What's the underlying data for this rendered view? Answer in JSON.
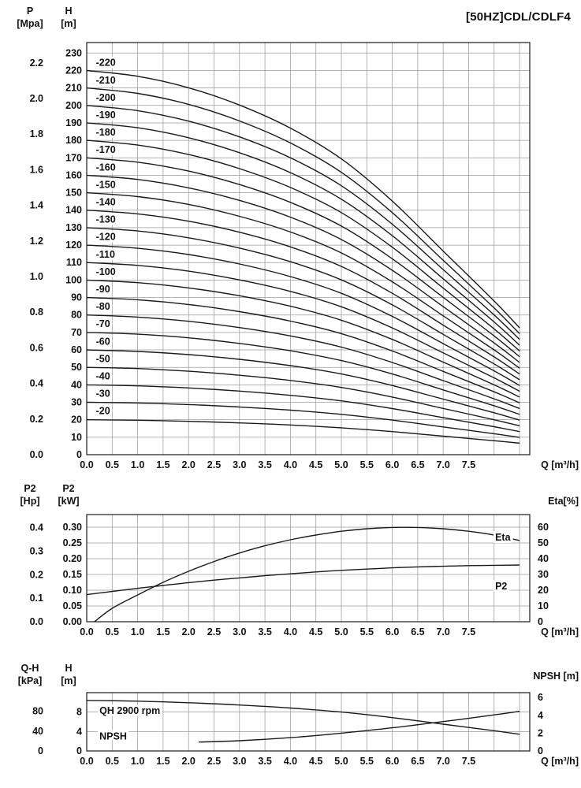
{
  "style": {
    "background": "#ffffff",
    "grid_color": "#9b9b9b",
    "line_color": "#1a1a1a",
    "text_color": "#111111"
  },
  "x_axis": {
    "label": "Q [m³/h]",
    "min": 0,
    "max": 8.7,
    "grid_step": 0.5,
    "tick_labels": [
      "0.0",
      "0.5",
      "1.0",
      "1.5",
      "2.0",
      "2.5",
      "3.0",
      "3.5",
      "4.0",
      "4.5",
      "5.0",
      "5.5",
      "6.0",
      "6.5",
      "7.0",
      "7.5"
    ]
  },
  "chart_data": [
    {
      "id": "qh",
      "type": "line",
      "title": "[50HZ]CDL/CDLF4",
      "xlabel": "Q [m³/h]",
      "ylim": [
        0,
        236
      ],
      "grid_y_step": 10,
      "y_axes": [
        {
          "name": "P",
          "title_lines": [
            "P",
            "[Mpa]"
          ],
          "to_primary": 101.9716,
          "ticks": [
            "0.0",
            "0.2",
            "0.4",
            "0.6",
            "0.8",
            "1.0",
            "1.2",
            "1.4",
            "1.6",
            "1.8",
            "2.0",
            "2.2"
          ]
        },
        {
          "name": "H",
          "title_lines": [
            "H",
            "[m]"
          ],
          "to_primary": 1,
          "ticks": [
            "0",
            "10",
            "20",
            "30",
            "40",
            "50",
            "60",
            "70",
            "80",
            "90",
            "100",
            "110",
            "120",
            "130",
            "140",
            "150",
            "160",
            "170",
            "180",
            "190",
            "200",
            "210",
            "220",
            "230"
          ]
        }
      ],
      "curve_labels": {
        "x": 0.18,
        "dy": 5
      },
      "x": [
        0,
        1,
        2,
        3,
        4,
        5,
        6,
        7,
        8,
        8.5
      ],
      "series": [
        {
          "name": "-220",
          "values": [
            220,
            216.7,
            210.1,
            200.2,
            187.0,
            169.4,
            145.2,
            116.6,
            88.0,
            72.6
          ]
        },
        {
          "name": "-210",
          "values": [
            210,
            206.9,
            200.6,
            191.1,
            178.5,
            161.7,
            138.6,
            111.3,
            84.0,
            69.3
          ]
        },
        {
          "name": "-200",
          "values": [
            200,
            197.0,
            191.0,
            182.0,
            170.0,
            154.0,
            132.0,
            106.0,
            80.0,
            66.0
          ]
        },
        {
          "name": "-190",
          "values": [
            190,
            187.2,
            181.5,
            172.9,
            161.5,
            146.3,
            125.4,
            100.7,
            76.0,
            62.7
          ]
        },
        {
          "name": "-180",
          "values": [
            180,
            177.3,
            171.9,
            163.8,
            153.0,
            138.6,
            118.8,
            95.4,
            72.0,
            59.4
          ]
        },
        {
          "name": "-170",
          "values": [
            170,
            167.5,
            162.4,
            154.7,
            144.5,
            130.9,
            112.2,
            90.1,
            68.0,
            56.1
          ]
        },
        {
          "name": "-160",
          "values": [
            160,
            157.6,
            152.8,
            145.6,
            136.0,
            123.2,
            105.6,
            84.8,
            64.0,
            52.8
          ]
        },
        {
          "name": "-150",
          "values": [
            150,
            147.8,
            143.3,
            136.5,
            127.5,
            115.5,
            99.0,
            79.5,
            60.0,
            49.5
          ]
        },
        {
          "name": "-140",
          "values": [
            140,
            137.9,
            133.7,
            127.4,
            119.0,
            107.8,
            92.4,
            74.2,
            56.0,
            46.2
          ]
        },
        {
          "name": "-130",
          "values": [
            130,
            128.1,
            124.2,
            118.3,
            110.5,
            100.1,
            85.8,
            68.9,
            52.0,
            42.9
          ]
        },
        {
          "name": "-120",
          "values": [
            120,
            118.2,
            114.6,
            109.2,
            102.0,
            92.4,
            79.2,
            63.6,
            48.0,
            39.6
          ]
        },
        {
          "name": "-110",
          "values": [
            110,
            108.4,
            105.1,
            100.1,
            93.5,
            84.7,
            72.6,
            58.3,
            44.0,
            36.3
          ]
        },
        {
          "name": "-100",
          "values": [
            100,
            98.5,
            95.5,
            91.0,
            85.0,
            77.0,
            66.0,
            53.0,
            40.0,
            33.0
          ]
        },
        {
          "name": "-90",
          "values": [
            90,
            88.7,
            86.0,
            81.9,
            76.5,
            69.3,
            59.4,
            47.7,
            36.0,
            29.7
          ]
        },
        {
          "name": "-80",
          "values": [
            80,
            78.8,
            76.4,
            72.8,
            68.0,
            61.6,
            52.8,
            42.4,
            32.0,
            26.4
          ]
        },
        {
          "name": "-70",
          "values": [
            70,
            69.0,
            66.9,
            63.7,
            59.5,
            53.9,
            46.2,
            37.1,
            28.0,
            23.1
          ]
        },
        {
          "name": "-60",
          "values": [
            60,
            59.1,
            57.3,
            54.6,
            51.0,
            46.2,
            39.6,
            31.8,
            24.0,
            19.8
          ]
        },
        {
          "name": "-50",
          "values": [
            50,
            49.3,
            47.8,
            45.5,
            42.5,
            38.5,
            33.0,
            26.5,
            20.0,
            16.5
          ]
        },
        {
          "name": "-40",
          "values": [
            40,
            39.4,
            38.2,
            36.4,
            34.0,
            30.8,
            26.4,
            21.2,
            16.0,
            13.2
          ]
        },
        {
          "name": "-30",
          "values": [
            30,
            29.6,
            28.7,
            27.3,
            25.5,
            23.1,
            19.8,
            15.9,
            12.0,
            9.9
          ]
        },
        {
          "name": "-20",
          "values": [
            20,
            19.7,
            19.1,
            18.2,
            17.0,
            15.4,
            13.2,
            10.6,
            8.0,
            6.6
          ]
        }
      ]
    },
    {
      "id": "power-eta",
      "type": "line",
      "xlabel": "Q [m³/h]",
      "ylim": [
        0,
        0.34
      ],
      "grid_y_step": 0.05,
      "y_axes": [
        {
          "name": "P2_Hp",
          "title_lines": [
            "P2",
            "[Hp]"
          ],
          "to_primary": 0.7457,
          "ticks": [
            "0.0",
            "0.1",
            "0.2",
            "0.3",
            "0.4"
          ]
        },
        {
          "name": "P2_kW",
          "title_lines": [
            "P2",
            "[kW]"
          ],
          "to_primary": 1,
          "ticks": [
            "0.00",
            "0.05",
            "0.10",
            "0.15",
            "0.20",
            "0.25",
            "0.30"
          ]
        }
      ],
      "right_axis": {
        "name": "Eta",
        "title": "Eta[%]",
        "to_primary": 0.005,
        "ticks": [
          "0",
          "10",
          "20",
          "30",
          "40",
          "50",
          "60"
        ]
      },
      "series": [
        {
          "name": "Eta",
          "to_primary": 0.005,
          "x": [
            0.15,
            0.5,
            1,
            1.5,
            2,
            2.5,
            3,
            3.5,
            4,
            4.5,
            5,
            5.5,
            6,
            6.5,
            7,
            7.5,
            8,
            8.5
          ],
          "values": [
            0,
            8.5,
            17,
            25,
            32,
            38.2,
            43.6,
            48.2,
            52,
            55,
            57.4,
            59,
            59.8,
            59.8,
            59,
            57.4,
            55,
            51.5
          ],
          "label": {
            "text": "Eta",
            "x": 8.02,
            "y": 0.268
          }
        },
        {
          "name": "P2",
          "to_primary": 1,
          "x": [
            0,
            0.5,
            1,
            1.5,
            2,
            2.5,
            3,
            3.5,
            4,
            4.5,
            5,
            5.5,
            6,
            6.5,
            7,
            7.5,
            8,
            8.5
          ],
          "values": [
            0.086,
            0.096,
            0.106,
            0.115,
            0.124,
            0.132,
            0.139,
            0.146,
            0.152,
            0.158,
            0.163,
            0.167,
            0.171,
            0.174,
            0.176,
            0.178,
            0.179,
            0.18
          ],
          "label": {
            "text": "P2",
            "x": 8.02,
            "y": 0.112
          }
        }
      ]
    },
    {
      "id": "qh-npsh",
      "type": "line",
      "xlabel": "Q [m³/h]",
      "ylim": [
        0,
        12
      ],
      "grid_y_step": 4,
      "y_axes": [
        {
          "name": "QH_kPa",
          "title_lines": [
            "Q-H",
            "[kPa]"
          ],
          "to_primary": 0.101972,
          "ticks": [
            "0",
            "40",
            "80"
          ]
        },
        {
          "name": "H_m",
          "title_lines": [
            "H",
            "[m]"
          ],
          "to_primary": 1,
          "ticks": [
            "0",
            "4",
            "8"
          ]
        }
      ],
      "right_axis": {
        "name": "NPSH",
        "title": "NPSH [m]",
        "to_primary": 1.8321,
        "ticks": [
          "0",
          "2",
          "4",
          "6"
        ]
      },
      "series": [
        {
          "name": "QH 2900 rpm",
          "to_primary": 1,
          "x": [
            0,
            1,
            2,
            3,
            4,
            5,
            6,
            7,
            8,
            8.5
          ],
          "values": [
            10.4,
            10.25,
            9.93,
            9.46,
            8.84,
            8.01,
            6.86,
            5.51,
            4.16,
            3.43
          ],
          "label": {
            "text": "QH 2900 rpm",
            "x": 0.25,
            "y": 8.3
          }
        },
        {
          "name": "NPSH",
          "to_primary": 1.8321,
          "x": [
            2.2,
            3,
            4,
            5,
            6,
            7,
            8,
            8.5
          ],
          "values": [
            1.0,
            1.15,
            1.5,
            2.0,
            2.6,
            3.3,
            4.05,
            4.45
          ],
          "label": {
            "text": "NPSH",
            "x": 0.25,
            "y": 3.0
          }
        }
      ]
    }
  ]
}
